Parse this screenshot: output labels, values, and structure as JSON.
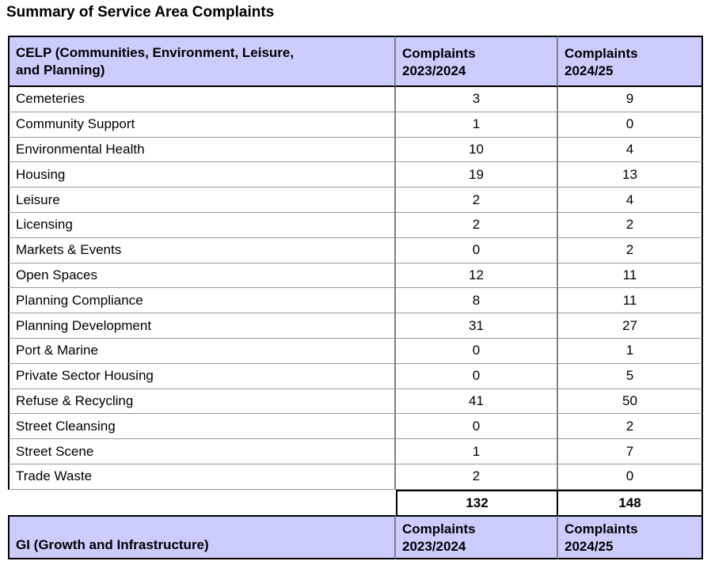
{
  "title": "Summary of Service Area Complaints",
  "colors": {
    "header_bg": "#ccccff",
    "border_dark": "#000000",
    "border_gray": "#808080",
    "row_line": "#999999"
  },
  "celp_table": {
    "header": {
      "department": "CELP (Communities, Environment, Leisure,\nand Planning)",
      "col_2023_24": "Complaints\n2023/2024",
      "col_2024_25": "Complaints\n2024/25"
    },
    "rows": [
      {
        "service_area": "Cemeteries",
        "complaints_2023_24": 3,
        "complaints_2024_25": 9
      },
      {
        "service_area": "Community Support",
        "complaints_2023_24": 1,
        "complaints_2024_25": 0
      },
      {
        "service_area": "Environmental Health",
        "complaints_2023_24": 10,
        "complaints_2024_25": 4
      },
      {
        "service_area": "Housing",
        "complaints_2023_24": 19,
        "complaints_2024_25": 13
      },
      {
        "service_area": "Leisure",
        "complaints_2023_24": 2,
        "complaints_2024_25": 4
      },
      {
        "service_area": "Licensing",
        "complaints_2023_24": 2,
        "complaints_2024_25": 2
      },
      {
        "service_area": "Markets & Events",
        "complaints_2023_24": 0,
        "complaints_2024_25": 2
      },
      {
        "service_area": "Open Spaces",
        "complaints_2023_24": 12,
        "complaints_2024_25": 11
      },
      {
        "service_area": "Planning Compliance",
        "complaints_2023_24": 8,
        "complaints_2024_25": 11
      },
      {
        "service_area": "Planning Development",
        "complaints_2023_24": 31,
        "complaints_2024_25": 27
      },
      {
        "service_area": "Port & Marine",
        "complaints_2023_24": 0,
        "complaints_2024_25": 1
      },
      {
        "service_area": "Private Sector Housing",
        "complaints_2023_24": 0,
        "complaints_2024_25": 5
      },
      {
        "service_area": "Refuse & Recycling",
        "complaints_2023_24": 41,
        "complaints_2024_25": 50
      },
      {
        "service_area": "Street Cleansing",
        "complaints_2023_24": 0,
        "complaints_2024_25": 2
      },
      {
        "service_area": "Street Scene",
        "complaints_2023_24": 1,
        "complaints_2024_25": 7
      },
      {
        "service_area": "Trade Waste",
        "complaints_2023_24": 2,
        "complaints_2024_25": 0
      }
    ],
    "total_2023_24": "132",
    "total_2024_25": "148"
  },
  "gi_table": {
    "header": {
      "department": "GI (Growth and Infrastructure)",
      "col_2023_24": "Complaints\n2023/2024",
      "col_2024_25": "Complaints\n2024/25"
    }
  }
}
